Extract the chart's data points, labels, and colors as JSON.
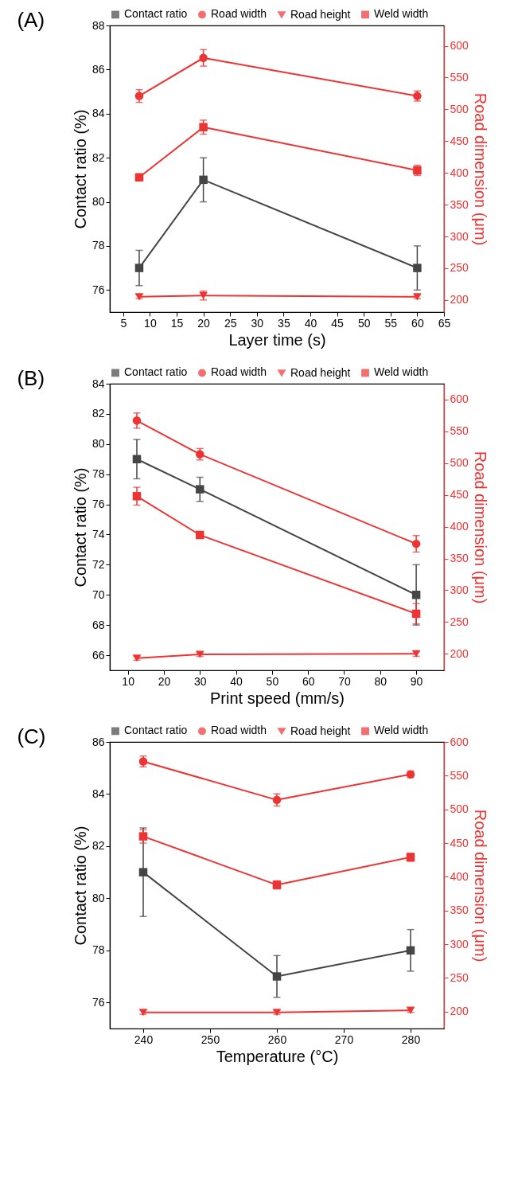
{
  "chart_data": [
    {
      "type": "line",
      "title": "(A)",
      "xlabel": "Layer time (s)",
      "ylabel": "Contact ratio (%)",
      "y2label": "Road dimension (μm)",
      "x": [
        8,
        20,
        60
      ],
      "xlim": [
        2.5,
        65
      ],
      "xticks": [
        5,
        10,
        15,
        20,
        25,
        30,
        35,
        40,
        45,
        50,
        55,
        60,
        65
      ],
      "ylim": [
        75,
        88
      ],
      "yticks": [
        76,
        78,
        80,
        82,
        84,
        86,
        88
      ],
      "y2lim": [
        181,
        632
      ],
      "y2ticks": [
        200,
        250,
        300,
        350,
        400,
        450,
        500,
        550,
        600
      ],
      "legend": "top",
      "series": [
        {
          "name": "Contact ratio",
          "color": "#454545",
          "marker": "square",
          "values": [
            77,
            81,
            77
          ],
          "errors": [
            0.8,
            1,
            1
          ]
        },
        {
          "name": "Road width",
          "color": "#ee3333",
          "marker": "circle",
          "axis": "y2",
          "values": [
            521,
            581,
            521
          ],
          "errors": [
            10,
            13,
            8
          ]
        },
        {
          "name": "Road height",
          "color": "#ee3333",
          "marker": "triangle",
          "axis": "y2",
          "values": [
            205,
            207,
            205
          ],
          "errors": [
            3,
            7,
            3
          ]
        },
        {
          "name": "Weld width",
          "color": "#ee3333",
          "marker": "square",
          "axis": "y2",
          "values": [
            393,
            472,
            404
          ],
          "errors": [
            5,
            11,
            8
          ]
        }
      ]
    },
    {
      "type": "line",
      "title": "(B)",
      "xlabel": "Print speed (mm/s)",
      "ylabel": "Contact ratio (%)",
      "y2label": "Road dimension (μm)",
      "x": [
        12.5,
        30,
        90
      ],
      "xlim": [
        5,
        97.7
      ],
      "xticks": [
        10,
        20,
        30,
        40,
        50,
        60,
        70,
        80,
        90
      ],
      "ylim": [
        65,
        84
      ],
      "yticks": [
        66,
        68,
        70,
        72,
        74,
        76,
        78,
        80,
        82,
        84
      ],
      "y2lim": [
        174,
        625
      ],
      "y2ticks": [
        200,
        250,
        300,
        350,
        400,
        450,
        500,
        550,
        600
      ],
      "legend": "top",
      "series": [
        {
          "name": "Contact ratio",
          "color": "#454545",
          "marker": "square",
          "values": [
            79,
            77,
            70
          ],
          "errors": [
            1.3,
            0.8,
            2
          ]
        },
        {
          "name": "Road width",
          "color": "#ee3333",
          "marker": "circle",
          "axis": "y2",
          "values": [
            567,
            514,
            373
          ],
          "errors": [
            12,
            9,
            13
          ]
        },
        {
          "name": "Road height",
          "color": "#ee3333",
          "marker": "triangle",
          "axis": "y2",
          "values": [
            193,
            199,
            200
          ],
          "errors": [
            3,
            3,
            4
          ]
        },
        {
          "name": "Weld width",
          "color": "#ee3333",
          "marker": "square",
          "axis": "y2",
          "values": [
            448,
            387,
            263
          ],
          "errors": [
            14,
            5,
            16
          ]
        }
      ]
    },
    {
      "type": "line",
      "title": "(C)",
      "xlabel": "Temperature (°C)",
      "ylabel": "Contact ratio (%)",
      "y2label": "Road dimension (μm)",
      "x": [
        240,
        260,
        280
      ],
      "xlim": [
        235,
        285
      ],
      "xticks": [
        240,
        250,
        260,
        270,
        280
      ],
      "ylim": [
        75,
        86
      ],
      "yticks": [
        76,
        78,
        80,
        82,
        84,
        86
      ],
      "y2lim": [
        175,
        600
      ],
      "y2ticks": [
        200,
        250,
        300,
        350,
        400,
        450,
        500,
        550,
        600
      ],
      "legend": "top",
      "series": [
        {
          "name": "Contact ratio",
          "color": "#454545",
          "marker": "square",
          "values": [
            81,
            77,
            78
          ],
          "errors": [
            1.7,
            0.8,
            0.8
          ]
        },
        {
          "name": "Road width",
          "color": "#ee3333",
          "marker": "circle",
          "axis": "y2",
          "values": [
            571,
            514,
            552
          ],
          "errors": [
            8,
            9,
            5
          ]
        },
        {
          "name": "Road height",
          "color": "#ee3333",
          "marker": "triangle",
          "axis": "y2",
          "values": [
            199,
            199,
            202
          ],
          "errors": [
            3,
            3,
            3
          ]
        },
        {
          "name": "Weld width",
          "color": "#ee3333",
          "marker": "square",
          "axis": "y2",
          "values": [
            460,
            388,
            429
          ],
          "errors": [
            10,
            6,
            6
          ]
        }
      ]
    }
  ]
}
